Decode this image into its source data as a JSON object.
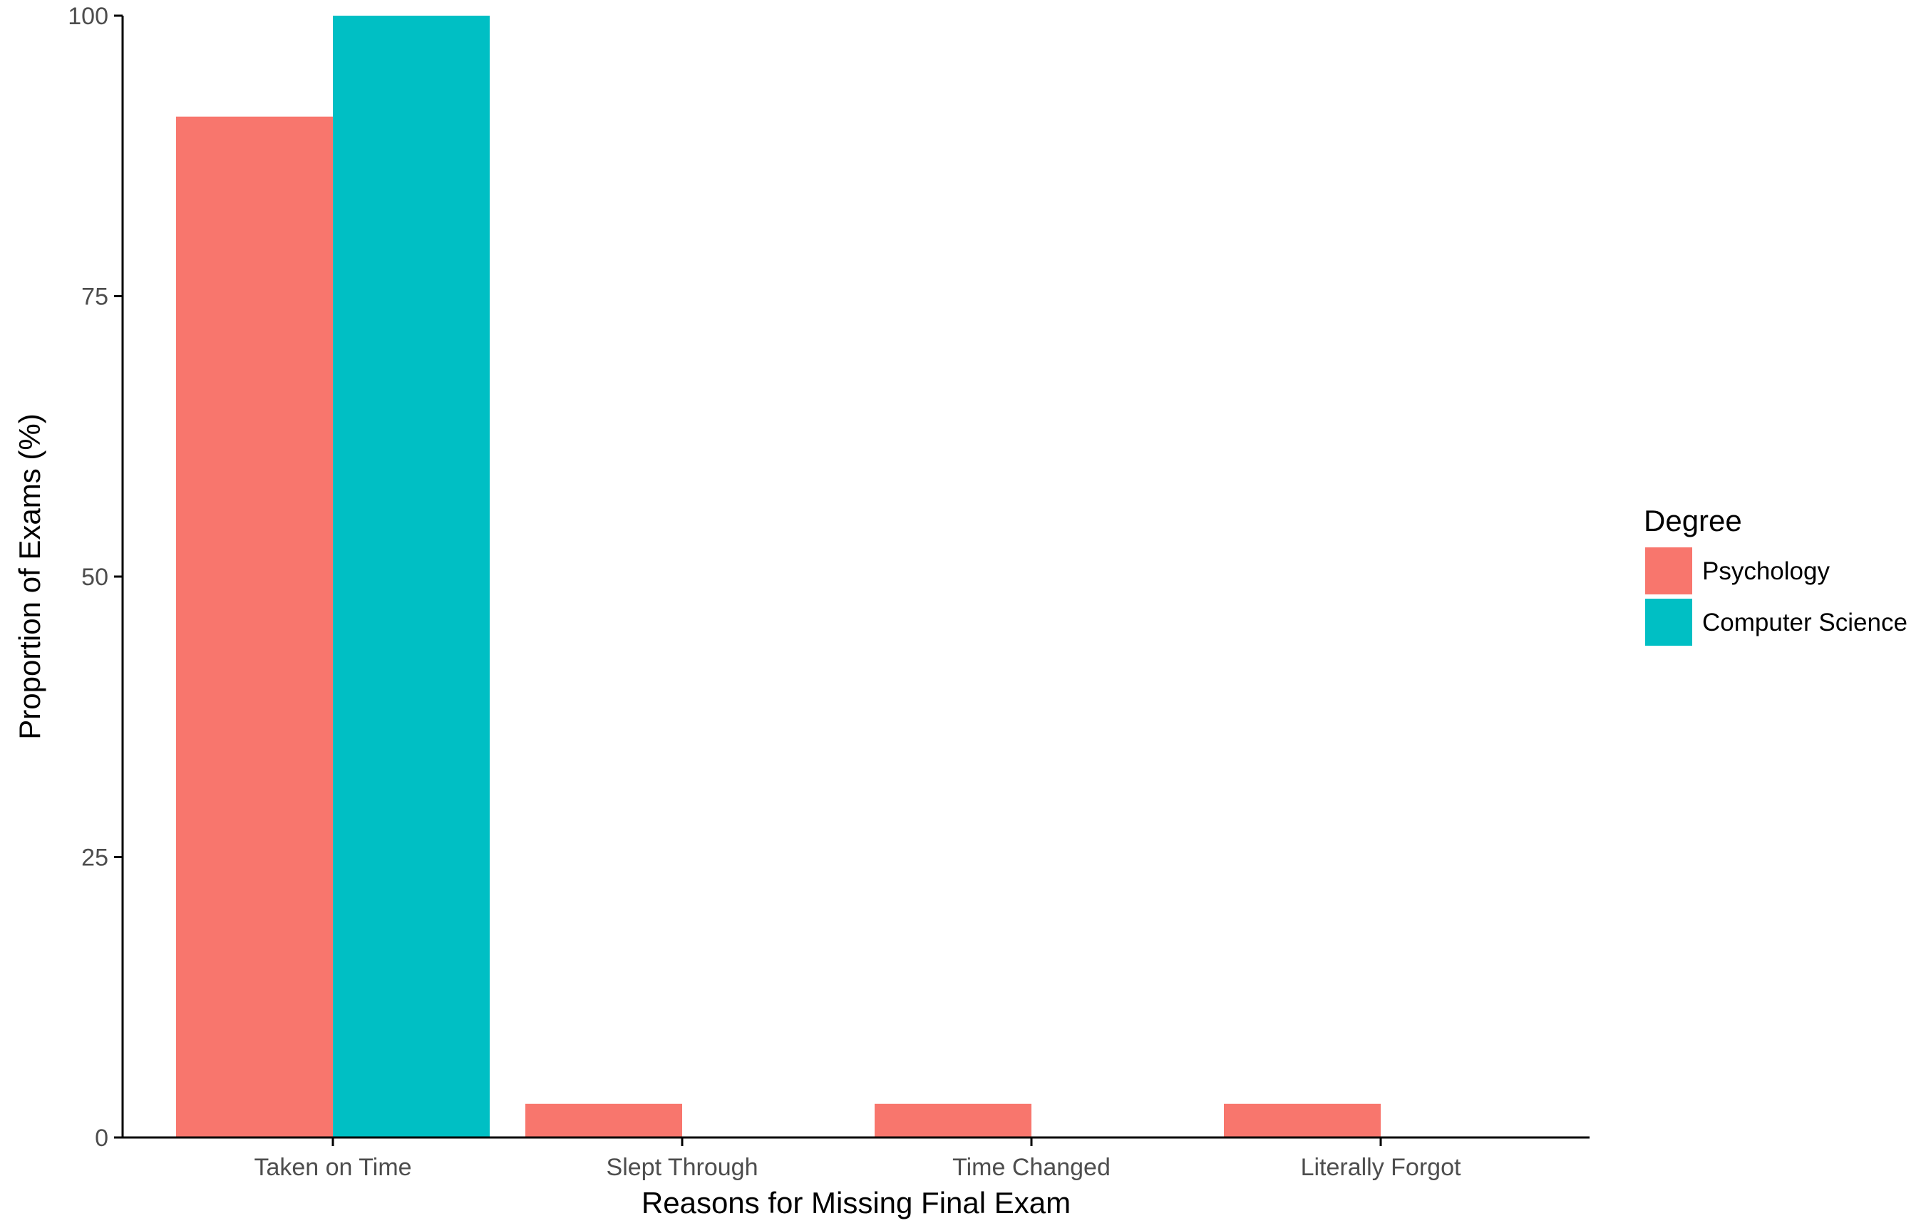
{
  "chart_data": {
    "type": "bar",
    "title": "",
    "xlabel": "Reasons for Missing Final Exam",
    "ylabel": "Proportion of Exams (%)",
    "categories": [
      "Taken on Time",
      "Slept Through",
      "Time Changed",
      "Literally Forgot"
    ],
    "series": [
      {
        "name": "Psychology",
        "color": "#F8766D",
        "values": [
          91,
          3,
          3,
          3
        ]
      },
      {
        "name": "Computer Science",
        "color": "#00BFC4",
        "values": [
          100,
          0,
          0,
          0
        ]
      }
    ],
    "ylim": [
      0,
      100
    ],
    "yticks": [
      0,
      25,
      50,
      75,
      100
    ],
    "grid": false,
    "legend": {
      "title": "Degree",
      "position": "right"
    }
  }
}
